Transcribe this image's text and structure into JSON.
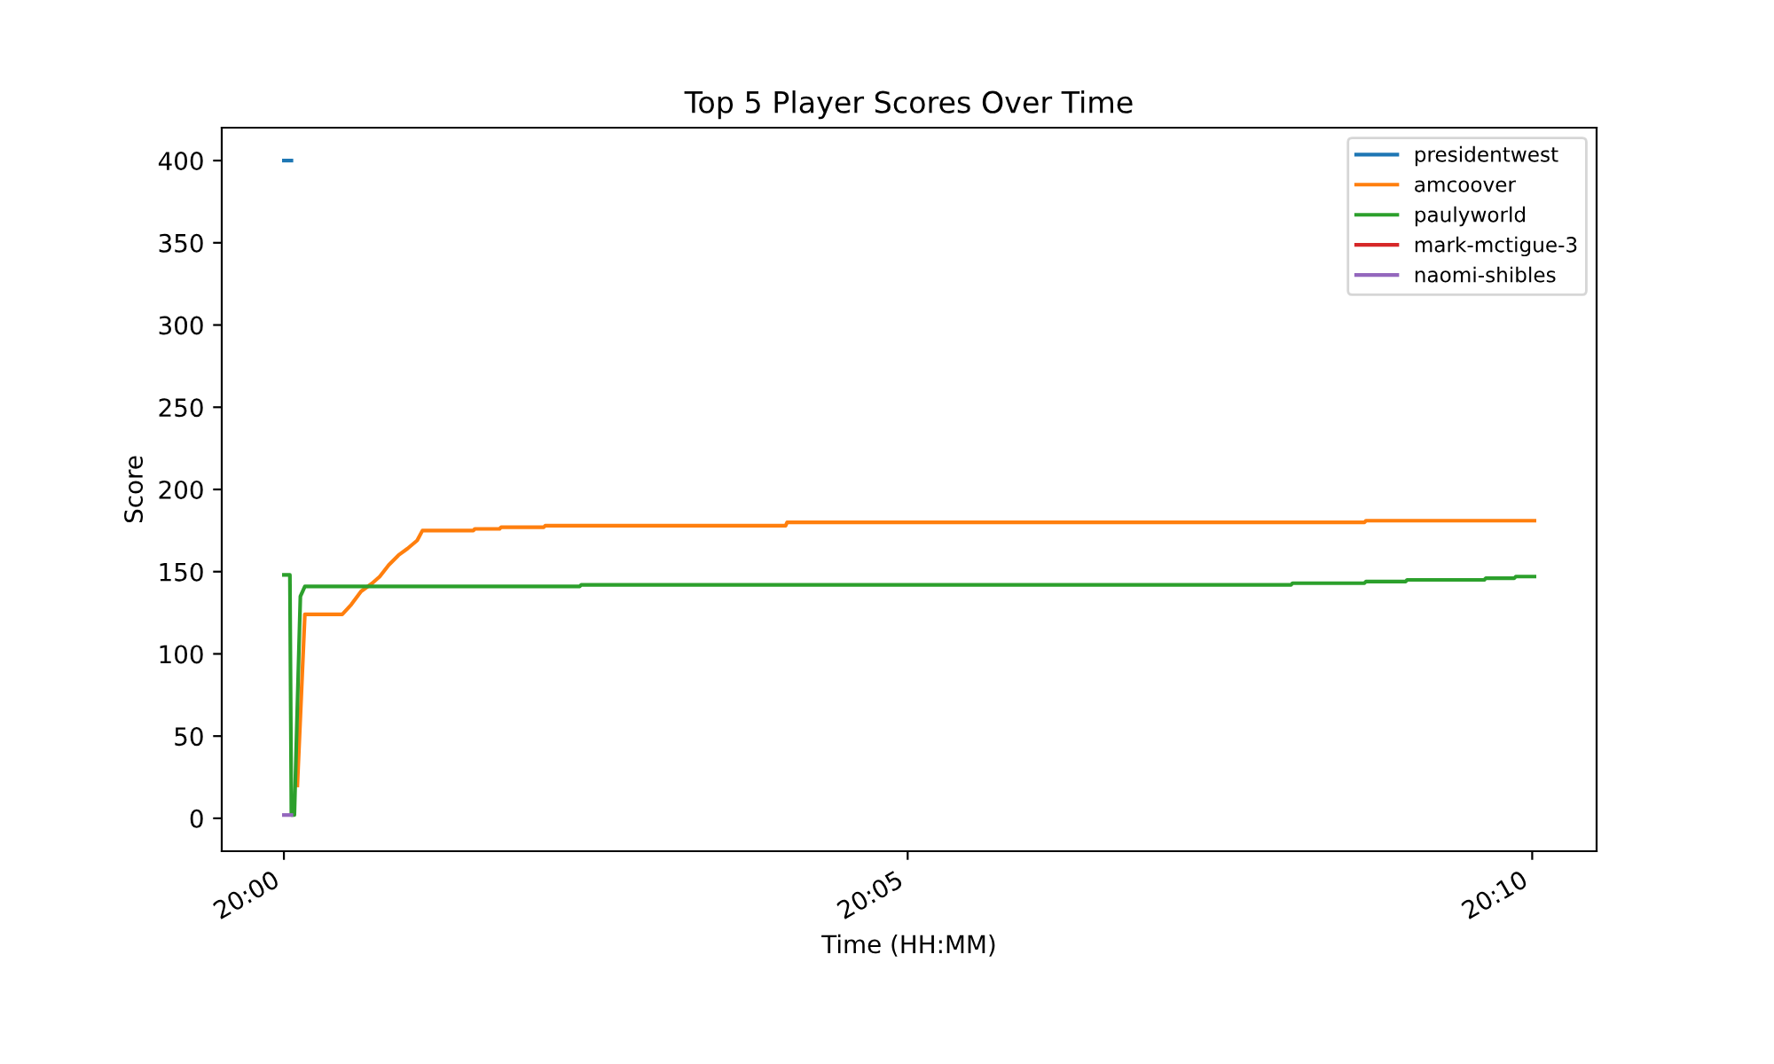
{
  "chart_data": {
    "type": "line",
    "title": "Top 5 Player Scores Over Time",
    "xlabel": "Time (HH:MM)",
    "ylabel": "Score",
    "series": [
      {
        "name": "presidentwest",
        "color": "#1f77b4",
        "x": [
          20.0,
          20.001
        ],
        "values": [
          400,
          400
        ]
      },
      {
        "name": "amcoover",
        "color": "#ff7f0e",
        "x": [
          20.0018,
          20.0028,
          20.0078,
          20.009,
          20.0103,
          20.0118,
          20.0128,
          20.014,
          20.0153,
          20.0165,
          20.0178,
          20.0185,
          20.0253,
          20.0255,
          20.0288,
          20.029,
          20.0347,
          20.0349,
          20.067,
          20.0672,
          20.1443,
          20.1445,
          20.167
        ],
        "values": [
          20,
          124,
          124,
          130,
          138,
          143,
          147,
          154,
          160,
          164,
          169,
          175,
          175,
          176,
          176,
          177,
          177,
          178,
          178,
          180,
          180,
          181,
          181
        ]
      },
      {
        "name": "paulyworld",
        "color": "#2ca02c",
        "x": [
          20.0,
          20.0008,
          20.001,
          20.0014,
          20.0022,
          20.0028,
          20.0395,
          20.0397,
          20.1345,
          20.1347,
          20.1443,
          20.1445,
          20.1498,
          20.15,
          20.1603,
          20.1605,
          20.1643,
          20.1645,
          20.167
        ],
        "values": [
          148,
          148,
          2,
          2,
          135,
          141,
          141,
          142,
          142,
          143,
          143,
          144,
          144,
          145,
          145,
          146,
          146,
          147,
          147
        ]
      },
      {
        "name": "mark-mctigue-3",
        "color": "#d62728"
      },
      {
        "name": "naomi-shibles",
        "color": "#9467bd",
        "x": [
          20.0,
          20.001
        ],
        "values": [
          2,
          2
        ]
      }
    ],
    "xlim": [
      19.9917,
      20.1753
    ],
    "xticks": [
      {
        "value": 20.0,
        "label": "20:00"
      },
      {
        "value": 20.0833,
        "label": "20:05"
      },
      {
        "value": 20.1667,
        "label": "20:10"
      }
    ],
    "ylim": [
      -20,
      420
    ],
    "yticks": [
      0,
      50,
      100,
      150,
      200,
      250,
      300,
      350,
      400
    ],
    "legend": "top right",
    "grid": false
  }
}
